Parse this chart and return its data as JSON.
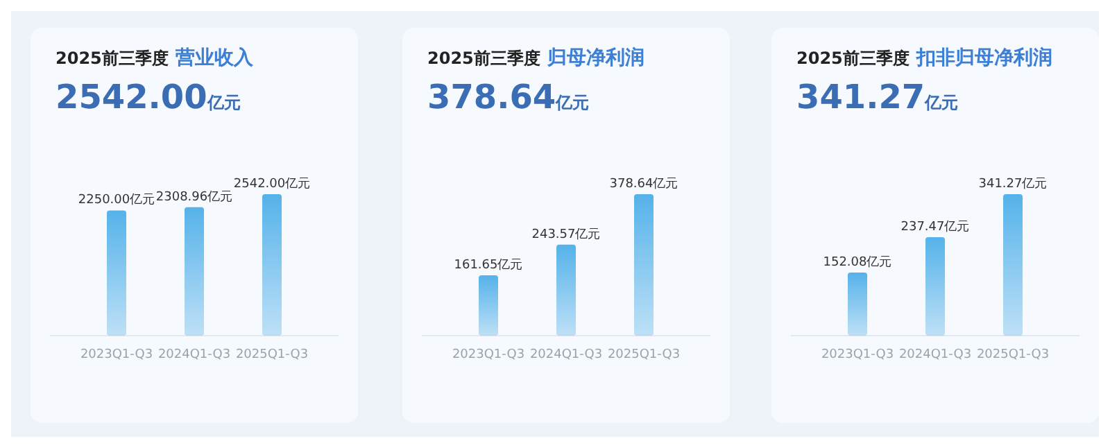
{
  "chart_data": [
    {
      "type": "bar",
      "title": "2025前三季度 营业收入",
      "subtitle": "2542.00亿元",
      "categories": [
        "2023Q1-Q3",
        "2024Q1-Q3",
        "2025Q1-Q3"
      ],
      "values": [
        2250.0,
        2308.96,
        2542.0
      ],
      "value_labels": [
        "2250.00亿元",
        "2308.96亿元",
        "2542.00亿元"
      ],
      "color": "#55b2ea"
    },
    {
      "type": "bar",
      "title": "2025前三季度 归母净利润",
      "subtitle": "378.64亿元",
      "categories": [
        "2023Q1-Q3",
        "2024Q1-Q3",
        "2025Q1-Q3"
      ],
      "values": [
        161.65,
        243.57,
        378.64
      ],
      "value_labels": [
        "161.65亿元",
        "243.57亿元",
        "378.64亿元"
      ],
      "color": "#55b2ea"
    },
    {
      "type": "bar",
      "title": "2025前三季度 扣非归母净利润",
      "subtitle": "341.27亿元",
      "categories": [
        "2023Q1-Q3",
        "2024Q1-Q3",
        "2025Q1-Q3"
      ],
      "values": [
        152.08,
        237.47,
        341.27
      ],
      "value_labels": [
        "152.08亿元",
        "237.47亿元",
        "341.27亿元"
      ],
      "color": "#55b2ea"
    }
  ]
}
